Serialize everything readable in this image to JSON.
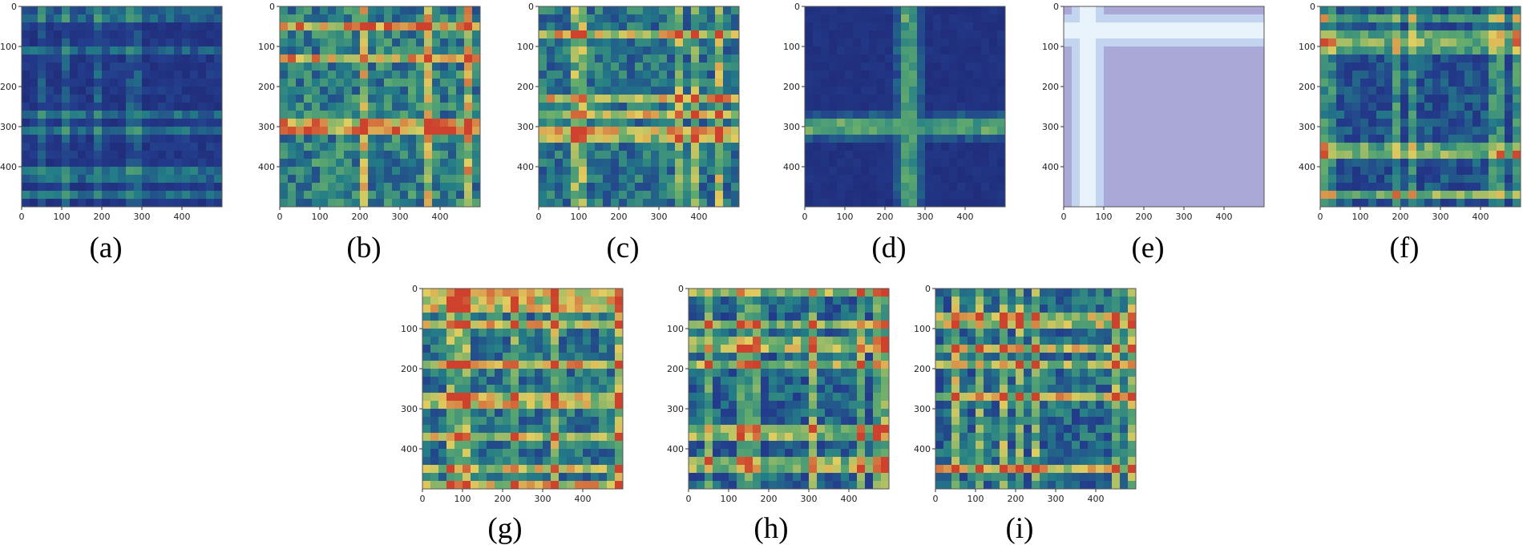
{
  "figure": {
    "panels": [
      {
        "id": "a",
        "caption": "(a)",
        "style": "dark-uniform"
      },
      {
        "id": "b",
        "caption": "(b)",
        "style": "grid-hot"
      },
      {
        "id": "c",
        "caption": "(c)",
        "style": "grid-warm"
      },
      {
        "id": "d",
        "caption": "(d)",
        "style": "cross-center"
      },
      {
        "id": "e",
        "caption": "(e)",
        "style": "cross-corner-light"
      },
      {
        "id": "f",
        "caption": "(f)",
        "style": "grid-dark"
      },
      {
        "id": "g",
        "caption": "(g)",
        "style": "grid-warm"
      },
      {
        "id": "h",
        "caption": "(h)",
        "style": "grid-rows"
      },
      {
        "id": "i",
        "caption": "(i)",
        "style": "grid-rows-hot"
      }
    ]
  },
  "chart_data": [
    {
      "type": "heatmap",
      "panel": "(a)",
      "xlim": [
        0,
        500
      ],
      "ylim": [
        500,
        0
      ],
      "xticks": [
        0,
        100,
        200,
        300,
        400
      ],
      "yticks": [
        0,
        100,
        200,
        300,
        400
      ],
      "colormap": "jet",
      "description_values": "attention map, mostly low values"
    },
    {
      "type": "heatmap",
      "panel": "(b)",
      "xlim": [
        0,
        500
      ],
      "ylim": [
        500,
        0
      ],
      "xticks": [
        0,
        100,
        200,
        300,
        400
      ],
      "yticks": [
        0,
        100,
        200,
        300,
        400
      ],
      "colormap": "jet"
    },
    {
      "type": "heatmap",
      "panel": "(c)",
      "xlim": [
        0,
        500
      ],
      "ylim": [
        500,
        0
      ],
      "xticks": [
        0,
        100,
        200,
        300,
        400
      ],
      "yticks": [
        0,
        100,
        200,
        300,
        400
      ],
      "colormap": "jet"
    },
    {
      "type": "heatmap",
      "panel": "(d)",
      "xlim": [
        0,
        500
      ],
      "ylim": [
        500,
        0
      ],
      "xticks": [
        0,
        100,
        200,
        300,
        400
      ],
      "yticks": [
        0,
        100,
        200,
        300,
        400
      ],
      "colormap": "jet"
    },
    {
      "type": "heatmap",
      "panel": "(e)",
      "xlim": [
        0,
        500
      ],
      "ylim": [
        500,
        0
      ],
      "xticks": [
        0,
        100,
        200,
        300,
        400
      ],
      "yticks": [
        0,
        100,
        200,
        300,
        400
      ],
      "colormap": "jet"
    },
    {
      "type": "heatmap",
      "panel": "(f)",
      "xlim": [
        0,
        500
      ],
      "ylim": [
        500,
        0
      ],
      "xticks": [
        0,
        100,
        200,
        300,
        400
      ],
      "yticks": [
        0,
        100,
        200,
        300,
        400
      ],
      "colormap": "jet"
    },
    {
      "type": "heatmap",
      "panel": "(g)",
      "xlim": [
        0,
        500
      ],
      "ylim": [
        500,
        0
      ],
      "xticks": [
        0,
        100,
        200,
        300,
        400
      ],
      "yticks": [
        0,
        100,
        200,
        300,
        400
      ],
      "colormap": "jet"
    },
    {
      "type": "heatmap",
      "panel": "(h)",
      "xlim": [
        0,
        500
      ],
      "ylim": [
        500,
        0
      ],
      "xticks": [
        0,
        100,
        200,
        300,
        400
      ],
      "yticks": [
        0,
        100,
        200,
        300,
        400
      ],
      "colormap": "jet"
    },
    {
      "type": "heatmap",
      "panel": "(i)",
      "xlim": [
        0,
        500
      ],
      "ylim": [
        500,
        0
      ],
      "xticks": [
        0,
        100,
        200,
        300,
        400
      ],
      "yticks": [
        0,
        100,
        200,
        300,
        400
      ],
      "colormap": "jet"
    }
  ],
  "colors": {
    "low": "#23307a",
    "mid": "#2a8a8a",
    "high": "#e9d45a",
    "peak": "#d2452f",
    "light_bg": "#a9a8d6"
  }
}
